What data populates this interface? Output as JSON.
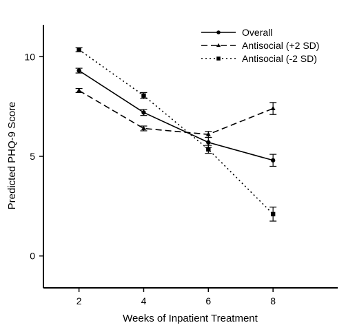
{
  "chart_data": {
    "type": "line",
    "xlabel": "Weeks of Inpatient Treatment",
    "ylabel": "Predicted PHQ-9 Score",
    "x": [
      2,
      4,
      6,
      8
    ],
    "x_ticks": [
      "2",
      "4",
      "6",
      "8"
    ],
    "y_ticks": [
      "0",
      "5",
      "10"
    ],
    "xlim": [
      0.9,
      10
    ],
    "ylim": [
      -1.6,
      11.6
    ],
    "grid": false,
    "legend_position": "top-right",
    "series": [
      {
        "name": "Overall",
        "values": [
          9.3,
          7.2,
          5.7,
          4.8
        ],
        "err": [
          0.12,
          0.15,
          0.25,
          0.3
        ],
        "line_style": "solid",
        "marker": "circle"
      },
      {
        "name": "Antisocial (+2 SD)",
        "values": [
          8.3,
          6.4,
          6.1,
          7.4
        ],
        "err": [
          0.1,
          0.12,
          0.15,
          0.3
        ],
        "line_style": "dashed",
        "marker": "triangle"
      },
      {
        "name": "Antisocial (-2 SD)",
        "values": [
          10.35,
          8.05,
          5.35,
          2.1
        ],
        "err": [
          0.1,
          0.15,
          0.2,
          0.35
        ],
        "line_style": "dotted",
        "marker": "square"
      }
    ]
  }
}
